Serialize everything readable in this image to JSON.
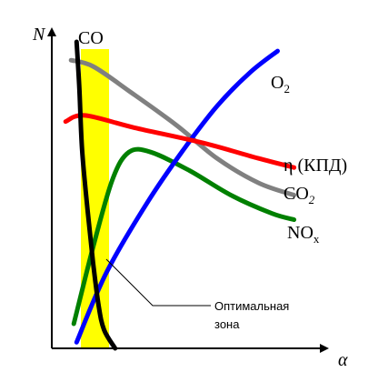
{
  "chart_data": {
    "type": "line",
    "title": "",
    "xlabel": "α",
    "ylabel": "N",
    "grid": false,
    "optimal_zone": {
      "label_line1": "Оптимальная",
      "label_line2": "зона",
      "color": "#ffff00"
    },
    "series": [
      {
        "name": "CO",
        "color": "#000000",
        "points": [
          [
            0.09,
            1.0
          ],
          [
            0.1,
            0.85
          ],
          [
            0.11,
            0.65
          ],
          [
            0.13,
            0.45
          ],
          [
            0.15,
            0.28
          ],
          [
            0.17,
            0.14
          ],
          [
            0.19,
            0.06
          ],
          [
            0.23,
            0.0
          ]
        ]
      },
      {
        "name": "O",
        "subscript": "2",
        "color": "#0000ff",
        "points": [
          [
            0.09,
            0.02
          ],
          [
            0.2,
            0.25
          ],
          [
            0.35,
            0.48
          ],
          [
            0.48,
            0.65
          ],
          [
            0.6,
            0.79
          ],
          [
            0.72,
            0.9
          ],
          [
            0.82,
            0.97
          ]
        ]
      },
      {
        "name": "η (КПД)",
        "color": "#ff0000",
        "points": [
          [
            0.05,
            0.74
          ],
          [
            0.12,
            0.76
          ],
          [
            0.3,
            0.72
          ],
          [
            0.55,
            0.67
          ],
          [
            0.75,
            0.62
          ],
          [
            0.88,
            0.59
          ]
        ]
      },
      {
        "name": "CO",
        "subscript": "2",
        "color": "#808080",
        "points": [
          [
            0.07,
            0.94
          ],
          [
            0.15,
            0.92
          ],
          [
            0.28,
            0.84
          ],
          [
            0.45,
            0.73
          ],
          [
            0.6,
            0.62
          ],
          [
            0.75,
            0.54
          ],
          [
            0.88,
            0.5
          ]
        ]
      },
      {
        "name": "NO",
        "subscript": "x",
        "color": "#008000",
        "points": [
          [
            0.08,
            0.08
          ],
          [
            0.15,
            0.33
          ],
          [
            0.22,
            0.55
          ],
          [
            0.28,
            0.64
          ],
          [
            0.36,
            0.64
          ],
          [
            0.5,
            0.58
          ],
          [
            0.65,
            0.5
          ],
          [
            0.8,
            0.44
          ],
          [
            0.88,
            0.42
          ]
        ]
      }
    ]
  }
}
